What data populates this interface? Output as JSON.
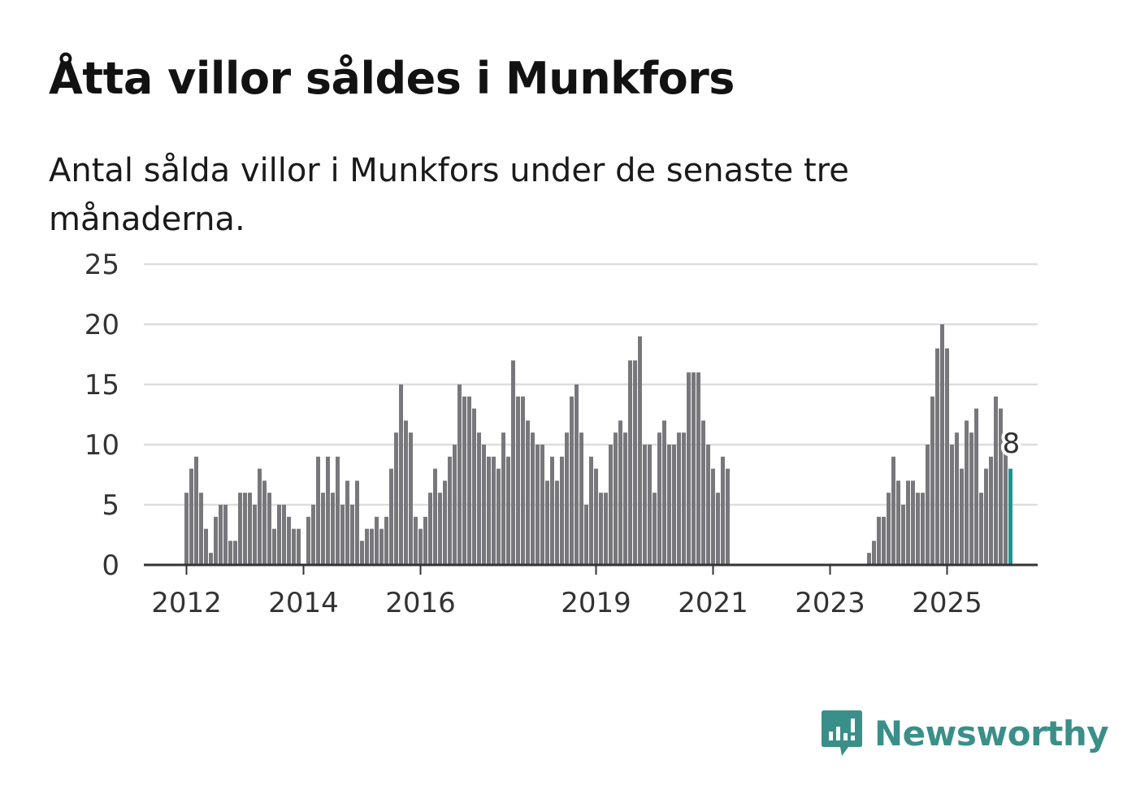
{
  "title": "Åtta villor såldes i Munkfors",
  "subtitle": "Antal sålda villor i Munkfors under de senaste tre månaderna.",
  "brand": {
    "name": "Newsworthy",
    "icon": "newsworthy-chart-bubble-icon"
  },
  "colors": {
    "bar": "#78777c",
    "highlight": "#1a9690",
    "grid": "#dddddd",
    "axis": "#333333",
    "brand": "#3a8f88"
  },
  "chart_data": {
    "type": "bar",
    "title": "Åtta villor såldes i Munkfors",
    "subtitle": "Antal sålda villor i Munkfors under de senaste tre månaderna.",
    "xlabel": "",
    "ylabel": "",
    "ylim": [
      0,
      25
    ],
    "yticks": [
      "0",
      "5",
      "10",
      "15",
      "20",
      "25"
    ],
    "xticks": [
      "2012",
      "2014",
      "2016",
      "2019",
      "2021",
      "2023",
      "2025"
    ],
    "grid": true,
    "annotation": {
      "label": "8",
      "value": 8
    },
    "start_month": "2012-01",
    "values": [
      6,
      8,
      9,
      6,
      3,
      1,
      4,
      5,
      5,
      2,
      2,
      6,
      6,
      6,
      5,
      8,
      7,
      6,
      3,
      5,
      5,
      4,
      3,
      3,
      0,
      4,
      5,
      9,
      6,
      9,
      6,
      9,
      5,
      7,
      5,
      7,
      2,
      3,
      3,
      4,
      3,
      4,
      8,
      11,
      15,
      12,
      11,
      4,
      3,
      4,
      6,
      8,
      6,
      7,
      9,
      10,
      15,
      14,
      14,
      13,
      11,
      10,
      9,
      9,
      8,
      11,
      9,
      17,
      14,
      14,
      12,
      11,
      10,
      10,
      7,
      9,
      7,
      9,
      11,
      14,
      15,
      11,
      5,
      9,
      8,
      6,
      6,
      10,
      11,
      12,
      11,
      17,
      17,
      19,
      10,
      10,
      6,
      11,
      12,
      10,
      10,
      11,
      11,
      16,
      16,
      16,
      12,
      10,
      8,
      6,
      9,
      8,
      0,
      0,
      0,
      0,
      0,
      0,
      0,
      0,
      0,
      0,
      0,
      0,
      0,
      0,
      0,
      0,
      0,
      0,
      0,
      0,
      0,
      0,
      0,
      0,
      0,
      0,
      0,
      0,
      1,
      2,
      4,
      4,
      6,
      9,
      7,
      5,
      7,
      7,
      6,
      6,
      10,
      14,
      18,
      20,
      18,
      10,
      11,
      8,
      12,
      11,
      13,
      6,
      8,
      9,
      14,
      13,
      10,
      8
    ]
  }
}
